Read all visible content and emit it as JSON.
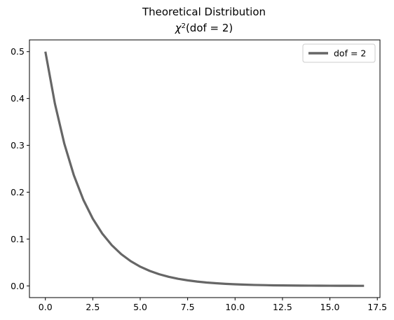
{
  "chart_data": {
    "type": "line",
    "title": "Theoretical Distribution",
    "subtitle_parts": {
      "prefix": "χ",
      "sup": "2",
      "body": "(dof = 2)"
    },
    "xlabel": "",
    "ylabel": "",
    "xlim": [
      -0.84,
      17.64
    ],
    "ylim": [
      -0.025,
      0.525
    ],
    "xticks": [
      0.0,
      2.5,
      5.0,
      7.5,
      10.0,
      12.5,
      15.0,
      17.5
    ],
    "xtick_labels": [
      "0.0",
      "2.5",
      "5.0",
      "7.5",
      "10.0",
      "12.5",
      "15.0",
      "17.5"
    ],
    "yticks": [
      0.0,
      0.1,
      0.2,
      0.3,
      0.4,
      0.5
    ],
    "ytick_labels": [
      "0.0",
      "0.1",
      "0.2",
      "0.3",
      "0.4",
      "0.5"
    ],
    "grid": false,
    "legend_position": "top-right",
    "series": [
      {
        "name": "dof = 2",
        "color": "#666666",
        "x": [
          0,
          0.5,
          1,
          1.5,
          2,
          2.5,
          3,
          3.5,
          4,
          4.5,
          5,
          5.5,
          6,
          6.5,
          7,
          7.5,
          8,
          8.5,
          9,
          9.5,
          10,
          10.5,
          11,
          11.5,
          12,
          12.5,
          13,
          13.5,
          14,
          14.5,
          15,
          15.5,
          16,
          16.5,
          16.8
        ],
        "y": [
          0.5,
          0.3894,
          0.3033,
          0.2362,
          0.1839,
          0.1433,
          0.1116,
          0.0869,
          0.0677,
          0.0527,
          0.041,
          0.032,
          0.0249,
          0.0194,
          0.0151,
          0.0118,
          0.0092,
          0.0071,
          0.0056,
          0.0043,
          0.0034,
          0.0026,
          0.002,
          0.0016,
          0.0012,
          0.001,
          0.0008,
          0.0006,
          0.0005,
          0.0004,
          0.0003,
          0.0002,
          0.0002,
          0.0001,
          0.0001
        ]
      }
    ]
  }
}
